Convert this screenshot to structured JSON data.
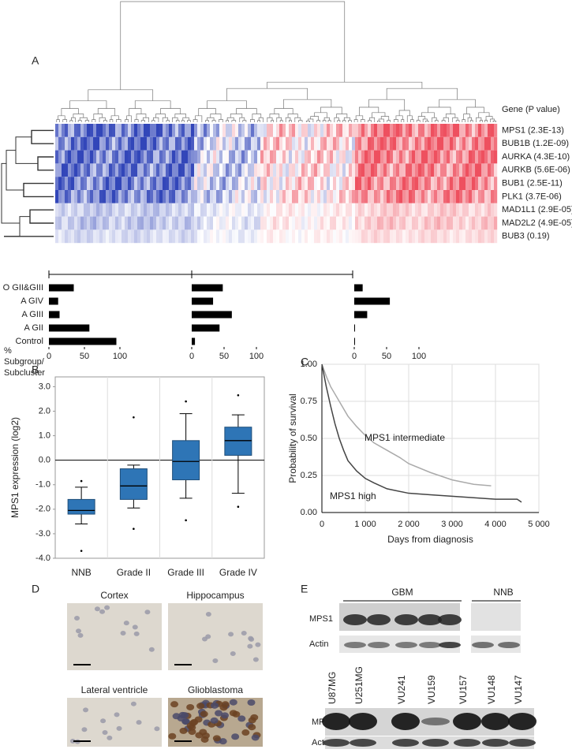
{
  "figure": {
    "panel_labels": [
      "A",
      "B",
      "C",
      "D",
      "E"
    ]
  },
  "heatmap": {
    "header": "Gene (P value)",
    "rows": [
      "MPS1  (2.3E-13)",
      "BUB1B  (1.2E-09)",
      "AURKA  (4.3E-10)",
      "AURKB  (5.6E-06)",
      "BUB1  (2.5E-11)",
      "PLK1  (3.7E-06)",
      "MAD1L1  (2.9E-05)",
      "MAD2L2  (4.9E-05)",
      "BUB3  (0.19)"
    ]
  },
  "chart_data": [
    {
      "type": "bar",
      "orientation": "horizontal",
      "categories": [
        "O  GII&GIII",
        "A  GIV",
        "A  GIII",
        "A  GII",
        "Control"
      ],
      "values": [
        35,
        13,
        15,
        57,
        95
      ],
      "color": "#000000",
      "xlim": [
        0,
        100
      ],
      "xticks": [
        0,
        50,
        100
      ],
      "xlabel": "% Subgroup/ Subcluster"
    },
    {
      "type": "bar",
      "orientation": "horizontal",
      "values": [
        48,
        33,
        62,
        43,
        5
      ],
      "color": "#000000",
      "xlim": [
        0,
        100
      ],
      "xticks": [
        0,
        50,
        100
      ]
    },
    {
      "type": "bar",
      "orientation": "horizontal",
      "values": [
        13,
        55,
        20,
        1,
        1
      ],
      "color": "#000000",
      "xlim": [
        0,
        100
      ],
      "xticks": [
        0,
        50,
        100
      ]
    },
    {
      "type": "box",
      "ylabel": "MPS1 expression (log2)",
      "categories": [
        "NNB",
        "Grade II",
        "Grade III",
        "Grade IV"
      ],
      "color": "#2e75b6",
      "whisker_low": [
        -2.6,
        -1.95,
        -1.55,
        -1.35
      ],
      "q1": [
        -2.2,
        -1.6,
        -0.8,
        0.2
      ],
      "median": [
        -2.05,
        -1.05,
        -0.05,
        0.8
      ],
      "q3": [
        -1.6,
        -0.35,
        0.8,
        1.35
      ],
      "whisker_high": [
        -1.1,
        -0.2,
        1.9,
        1.85
      ],
      "outliers": [
        [
          -0.85,
          -3.7
        ],
        [
          1.75,
          -2.8
        ],
        [
          2.4,
          -2.45
        ],
        [
          2.65,
          -1.9
        ]
      ],
      "ylim": [
        -4,
        3.4
      ],
      "yticks": [
        {
          "value": -4,
          "label": "-4.0"
        },
        {
          "value": -3,
          "label": "-3.0"
        },
        {
          "value": -2,
          "label": "-2.0"
        },
        {
          "value": -1,
          "label": "-1.0"
        },
        {
          "value": 0,
          "label": "0.0"
        },
        {
          "value": 1,
          "label": "1.0"
        },
        {
          "value": 2,
          "label": "2.0"
        },
        {
          "value": 3,
          "label": "3.0"
        }
      ]
    },
    {
      "type": "line",
      "xlabel": "Days from diagnosis",
      "ylabel": "Probability of survival",
      "grid": true,
      "series": [
        {
          "name": "MPS1 intermediate",
          "color": "#aaaaaa",
          "x": [
            0,
            100,
            200,
            400,
            600,
            800,
            1000,
            1200,
            1500,
            1800,
            2000,
            2500,
            3000,
            3500,
            3900
          ],
          "values": [
            1,
            0.92,
            0.85,
            0.75,
            0.65,
            0.58,
            0.52,
            0.47,
            0.42,
            0.37,
            0.33,
            0.27,
            0.22,
            0.19,
            0.18
          ]
        },
        {
          "name": "MPS1 high",
          "color": "#444444",
          "x": [
            0,
            100,
            200,
            300,
            400,
            500,
            600,
            800,
            1000,
            1200,
            1500,
            2000,
            2500,
            3000,
            3500,
            4000,
            4500,
            4600
          ],
          "values": [
            1,
            0.85,
            0.72,
            0.6,
            0.5,
            0.42,
            0.35,
            0.28,
            0.23,
            0.2,
            0.16,
            0.13,
            0.12,
            0.11,
            0.1,
            0.09,
            0.09,
            0.07
          ]
        }
      ],
      "xlim": [
        0,
        5000
      ],
      "ylim": [
        0,
        1
      ],
      "xticks": [
        0,
        {
          "value": 1000,
          "label": "1 000"
        },
        {
          "value": 2000,
          "label": "2 000"
        },
        {
          "value": 3000,
          "label": "3 000"
        },
        {
          "value": 4000,
          "label": "4 000"
        },
        {
          "value": 5000,
          "label": "5 000"
        }
      ],
      "yticks": [
        {
          "value": 0,
          "label": "0.00"
        },
        {
          "value": 0.25,
          "label": "0.25"
        },
        {
          "value": 0.5,
          "label": "0.50"
        },
        {
          "value": 0.75,
          "label": "0.75"
        },
        {
          "value": 1,
          "label": "1.00"
        }
      ]
    }
  ],
  "histology": {
    "images": [
      "Cortex",
      "Hippocampus",
      "Lateral ventricle",
      "Glioblastoma"
    ]
  },
  "western_blot": {
    "groups": [
      "GBM",
      "NNB"
    ],
    "rows": [
      "MPS1",
      "Actin"
    ],
    "lanes": [
      "U87MG",
      "U251MG",
      "VU241",
      "VU159",
      "VU157",
      "VU148",
      "VU147"
    ]
  }
}
